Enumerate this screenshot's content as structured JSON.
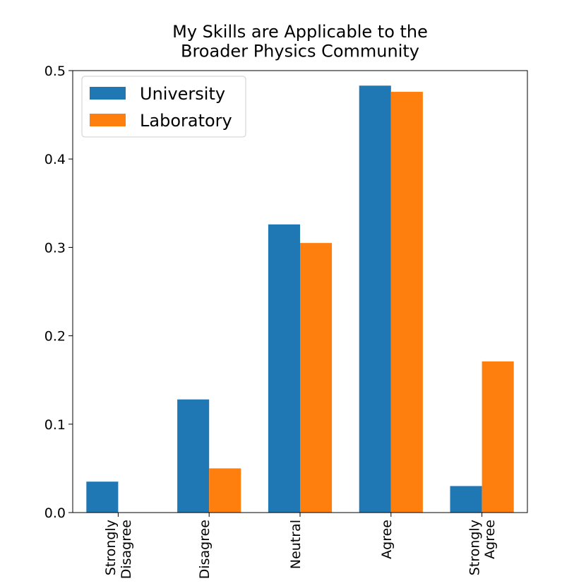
{
  "chart_data": {
    "type": "bar",
    "title": "My Skills are Applicable to the\nBroader Physics Community",
    "categories": [
      "Strongly\nDisagree",
      "Disagree",
      "Neutral",
      "Agree",
      "Strongly\nAgree"
    ],
    "series": [
      {
        "name": "University",
        "color": "#1f77b4",
        "values": [
          0.035,
          0.128,
          0.326,
          0.483,
          0.03
        ]
      },
      {
        "name": "Laboratory",
        "color": "#ff7f0e",
        "values": [
          0,
          0.05,
          0.305,
          0.476,
          0.171
        ]
      }
    ],
    "ylim": [
      0,
      0.5
    ],
    "yticks": [
      {
        "value": 0,
        "label": "0.0"
      },
      0.1,
      0.2,
      0.3,
      0.4,
      0.5
    ],
    "legend": "upper left"
  }
}
